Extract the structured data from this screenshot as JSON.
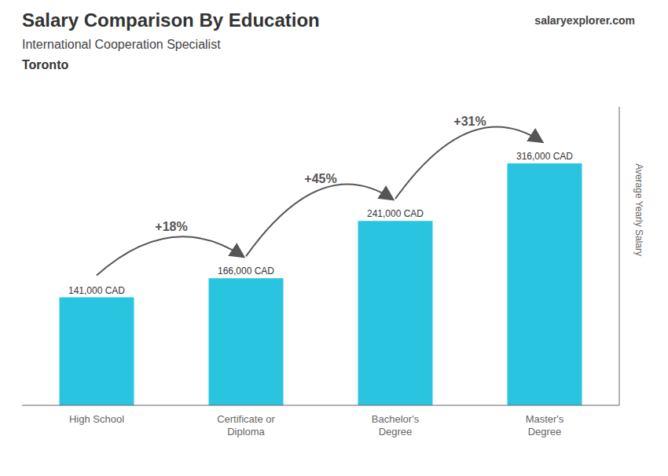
{
  "chart_data": {
    "type": "bar",
    "title": "Salary Comparison By Education",
    "subtitle": "International Cooperation Specialist",
    "ylabel": "Average Yearly Salary",
    "categories": [
      "High School",
      "Certificate or\nDiploma",
      "Bachelor's\nDegree",
      "Master's\nDegree"
    ],
    "values": [
      141000,
      166000,
      241000,
      316000
    ],
    "value_labels": [
      "141,000 CAD",
      "166,000 CAD",
      "241,000 CAD",
      "316,000 CAD"
    ],
    "data_labels": true,
    "color": "#29c4e0",
    "ylim": [
      0,
      390000
    ],
    "tick_labels": "x",
    "grid": false,
    "annotations": [
      {
        "text": "Toronto"
      },
      {
        "text": "salaryexplorer.com"
      },
      {
        "text": "+18%",
        "from": "High School",
        "to": "Certificate or\nDiploma"
      },
      {
        "text": "+45%",
        "from": "Certificate or\nDiploma",
        "to": "Bachelor's\nDegree"
      },
      {
        "text": "+31%",
        "from": "Bachelor's\nDegree",
        "to": "Master's\nDegree"
      }
    ]
  }
}
